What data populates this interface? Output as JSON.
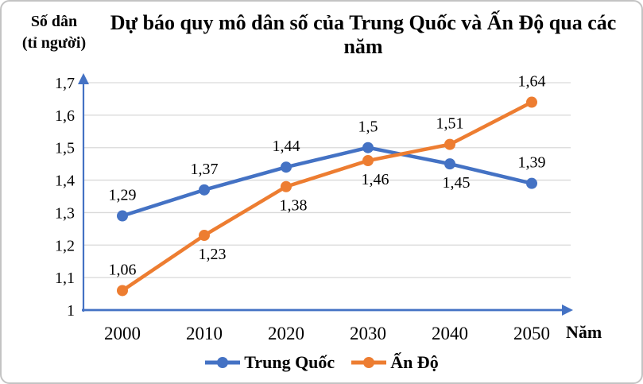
{
  "y_axis_title": {
    "line1": "Số dân",
    "line2": "(tỉ người)"
  },
  "colors": {
    "china": "#4472C4",
    "india": "#ED7D31",
    "axis": "#4472C4",
    "gridline": "#D9D9D9",
    "text": "#000000"
  },
  "chart_data": {
    "type": "line",
    "title": "Dự báo quy mô dân số của Trung Quốc và Ấn Độ qua các năm",
    "xlabel": "Năm",
    "ylabel": "Số dân (tỉ người)",
    "categories": [
      "2000",
      "2010",
      "2020",
      "2030",
      "2040",
      "2050"
    ],
    "ylim": [
      1.0,
      1.7
    ],
    "y_ticks": [
      {
        "value": 1.7,
        "label": "1,7"
      },
      {
        "value": 1.6,
        "label": "1,6"
      },
      {
        "value": 1.5,
        "label": "1,5"
      },
      {
        "value": 1.4,
        "label": "1,4"
      },
      {
        "value": 1.3,
        "label": "1,3"
      },
      {
        "value": 1.2,
        "label": "1,2"
      },
      {
        "value": 1.1,
        "label": "1,1"
      },
      {
        "value": 1.0,
        "label": "1"
      }
    ],
    "grid": true,
    "legend_position": "bottom",
    "series": [
      {
        "name": "Trung Quốc",
        "color": "#4472C4",
        "values": [
          1.29,
          1.37,
          1.44,
          1.5,
          1.45,
          1.39
        ],
        "point_labels": [
          "1,29",
          "1,37",
          "1,44",
          "1,5",
          "1,45",
          "1,39"
        ],
        "label_side": [
          "above",
          "above",
          "above",
          "above",
          "below",
          "above"
        ],
        "label_dx": [
          0,
          0,
          0,
          0,
          8,
          0
        ]
      },
      {
        "name": "Ấn Độ",
        "color": "#ED7D31",
        "values": [
          1.06,
          1.23,
          1.38,
          1.46,
          1.51,
          1.64
        ],
        "point_labels": [
          "1,06",
          "1,23",
          "1,38",
          "1,46",
          "1,51",
          "1,64"
        ],
        "label_side": [
          "above",
          "below",
          "below",
          "below",
          "above",
          "above"
        ],
        "label_dx": [
          0,
          10,
          9,
          9,
          0,
          0
        ]
      }
    ]
  }
}
